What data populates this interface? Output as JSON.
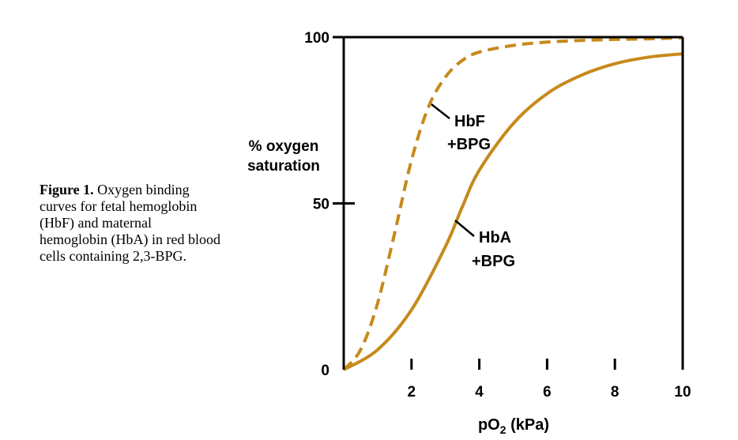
{
  "caption": {
    "lead": "Figure 1.",
    "text": "Oxygen binding curves for fetal hemoglobin (HbF) and maternal hemoglobin (HbA) in red blood cells containing 2,3-BPG."
  },
  "chart_data": {
    "type": "line",
    "ylabel_line1": "% oxygen",
    "ylabel_line2": "saturation",
    "xlabel_main": "pO",
    "xlabel_sub": "2",
    "xlabel_unit": " (kPa)",
    "xlim": [
      0,
      10
    ],
    "ylim": [
      0,
      100
    ],
    "x_ticks": [
      2,
      4,
      6,
      8,
      10
    ],
    "y_ticks": [
      0,
      50,
      100
    ],
    "curve_color": "#c68a1b",
    "series": [
      {
        "name_line1": "HbF",
        "name_line2": "+BPG",
        "style": "dashed",
        "x": [
          0,
          0.5,
          1.0,
          1.5,
          2.0,
          2.5,
          3.0,
          3.5,
          4.0,
          5.0,
          6.0,
          7.0,
          8.0,
          9.0,
          10.0
        ],
        "y": [
          0,
          6,
          20,
          41,
          63,
          79,
          88,
          93,
          95.5,
          97.5,
          98.5,
          99,
          99.3,
          99.5,
          99.8
        ]
      },
      {
        "name_line1": "HbA",
        "name_line2": "+BPG",
        "style": "solid",
        "x": [
          0,
          1.0,
          2.0,
          3.0,
          3.5,
          4.0,
          5.0,
          6.0,
          7.0,
          8.0,
          9.0,
          10.0
        ],
        "y": [
          0,
          6,
          18,
          37,
          49,
          60,
          74,
          83,
          88.5,
          92,
          94,
          95
        ]
      }
    ]
  }
}
